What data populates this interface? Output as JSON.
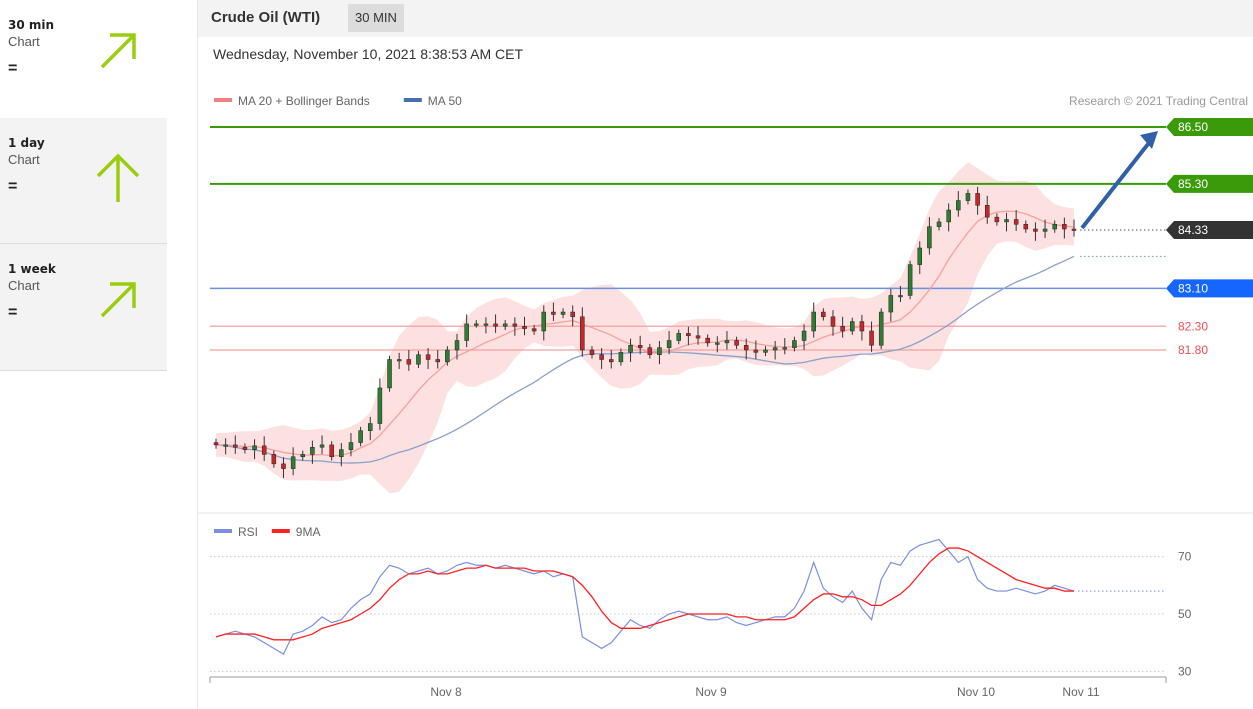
{
  "sidebar": {
    "items": [
      {
        "name": "30 min",
        "sub": "Chart",
        "status": "=",
        "icon": "arrow-up-right-icon"
      },
      {
        "name": "1 day",
        "sub": "Chart",
        "status": "=",
        "icon": "arrow-up-icon"
      },
      {
        "name": "1 week",
        "sub": "Chart",
        "status": "=",
        "icon": "arrow-up-right-icon"
      }
    ],
    "arrow_color": "#9acd0e"
  },
  "header": {
    "title": "Crude Oil (WTI)",
    "timeframe": "30 MIN"
  },
  "datetime": "Wednesday, November 10, 2021 8:38:53 AM CET",
  "chart_data": [
    {
      "type": "candlestick",
      "legend": [
        {
          "name": "MA 20 + Bollinger Bands",
          "color": "#f08080"
        },
        {
          "name": "MA 50",
          "color": "#4a6fb0"
        }
      ],
      "credit": "Research © 2021 Trading Central",
      "x_labels": [
        "Nov 8",
        "Nov 9",
        "Nov 10",
        "Nov 11"
      ],
      "levels": [
        {
          "value": 86.5,
          "label": "86.50",
          "type": "resistance",
          "color": "#3a9a0a"
        },
        {
          "value": 85.3,
          "label": "85.30",
          "type": "resistance",
          "color": "#3a9a0a"
        },
        {
          "value": 84.33,
          "label": "84.33",
          "type": "last",
          "color": "#333333"
        },
        {
          "value": 83.1,
          "label": "83.10",
          "type": "pivot",
          "color": "#1565ff"
        },
        {
          "value": 82.3,
          "label": "82.30",
          "type": "support",
          "color": "#f05050"
        },
        {
          "value": 81.8,
          "label": "81.80",
          "type": "support",
          "color": "#f05050"
        }
      ],
      "close_approx": [
        79.8,
        79.8,
        79.75,
        79.7,
        79.78,
        79.6,
        79.4,
        79.3,
        79.55,
        79.6,
        79.75,
        79.8,
        79.55,
        79.7,
        79.85,
        80.1,
        80.25,
        81.0,
        81.6,
        81.6,
        81.5,
        81.7,
        81.6,
        81.55,
        81.8,
        82.0,
        82.35,
        82.35,
        82.35,
        82.3,
        82.35,
        82.3,
        82.25,
        82.2,
        82.6,
        82.55,
        82.6,
        82.5,
        81.8,
        81.7,
        81.6,
        81.55,
        81.75,
        81.9,
        81.85,
        81.7,
        81.85,
        82.0,
        82.15,
        82.1,
        82.05,
        81.95,
        81.95,
        82.0,
        81.9,
        81.8,
        81.75,
        81.8,
        81.85,
        81.85,
        82.0,
        82.2,
        82.6,
        82.5,
        82.3,
        82.2,
        82.4,
        82.2,
        81.9,
        82.6,
        82.95,
        82.95,
        83.6,
        83.95,
        84.4,
        84.5,
        84.75,
        84.95,
        85.1,
        84.85,
        84.6,
        84.5,
        84.55,
        84.45,
        84.35,
        84.3,
        84.35,
        84.45,
        84.35,
        84.33
      ],
      "projection": {
        "from": 84.33,
        "to": 86.5
      }
    },
    {
      "type": "line",
      "legend": [
        {
          "name": "RSI",
          "color": "#7a8fe0"
        },
        {
          "name": "9MA",
          "color": "#ff2020"
        }
      ],
      "y_ticks": [
        70,
        50,
        30
      ],
      "ylim": [
        20,
        80
      ],
      "rsi_approx": [
        42,
        43,
        44,
        43,
        42,
        40,
        38,
        36,
        43,
        44,
        46,
        49,
        47,
        48,
        52,
        55,
        57,
        63,
        67,
        66,
        64,
        65,
        66,
        64,
        65,
        67,
        68,
        67,
        67,
        66,
        67,
        66,
        65,
        64,
        65,
        63,
        64,
        63,
        42,
        40,
        38,
        40,
        44,
        48,
        46,
        45,
        48,
        50,
        51,
        50,
        49,
        48,
        48,
        49,
        47,
        46,
        47,
        48,
        49,
        49,
        52,
        58,
        68,
        59,
        56,
        54,
        58,
        52,
        48,
        62,
        68,
        67,
        72,
        74,
        75,
        76,
        72,
        68,
        70,
        62,
        59,
        58,
        58,
        59,
        58,
        57,
        58,
        60,
        59,
        58
      ],
      "ma9_approx": [
        42,
        43,
        43,
        43,
        43,
        42,
        41,
        41,
        41,
        42,
        43,
        45,
        46,
        47,
        48,
        50,
        52,
        55,
        59,
        62,
        64,
        64,
        65,
        64,
        64,
        65,
        66,
        66,
        67,
        66,
        66,
        66,
        66,
        65,
        65,
        65,
        64,
        63,
        60,
        56,
        51,
        47,
        45,
        45,
        45,
        46,
        47,
        48,
        49,
        50,
        50,
        50,
        50,
        50,
        49,
        49,
        48,
        48,
        48,
        48,
        49,
        52,
        55,
        57,
        57,
        56,
        56,
        55,
        53,
        53,
        55,
        57,
        60,
        64,
        68,
        71,
        73,
        73,
        72,
        70,
        68,
        66,
        64,
        62,
        61,
        60,
        59,
        59,
        58,
        58
      ],
      "colors": {
        "rsi": "#7a8fe0",
        "ma9": "#ff2020"
      }
    }
  ]
}
